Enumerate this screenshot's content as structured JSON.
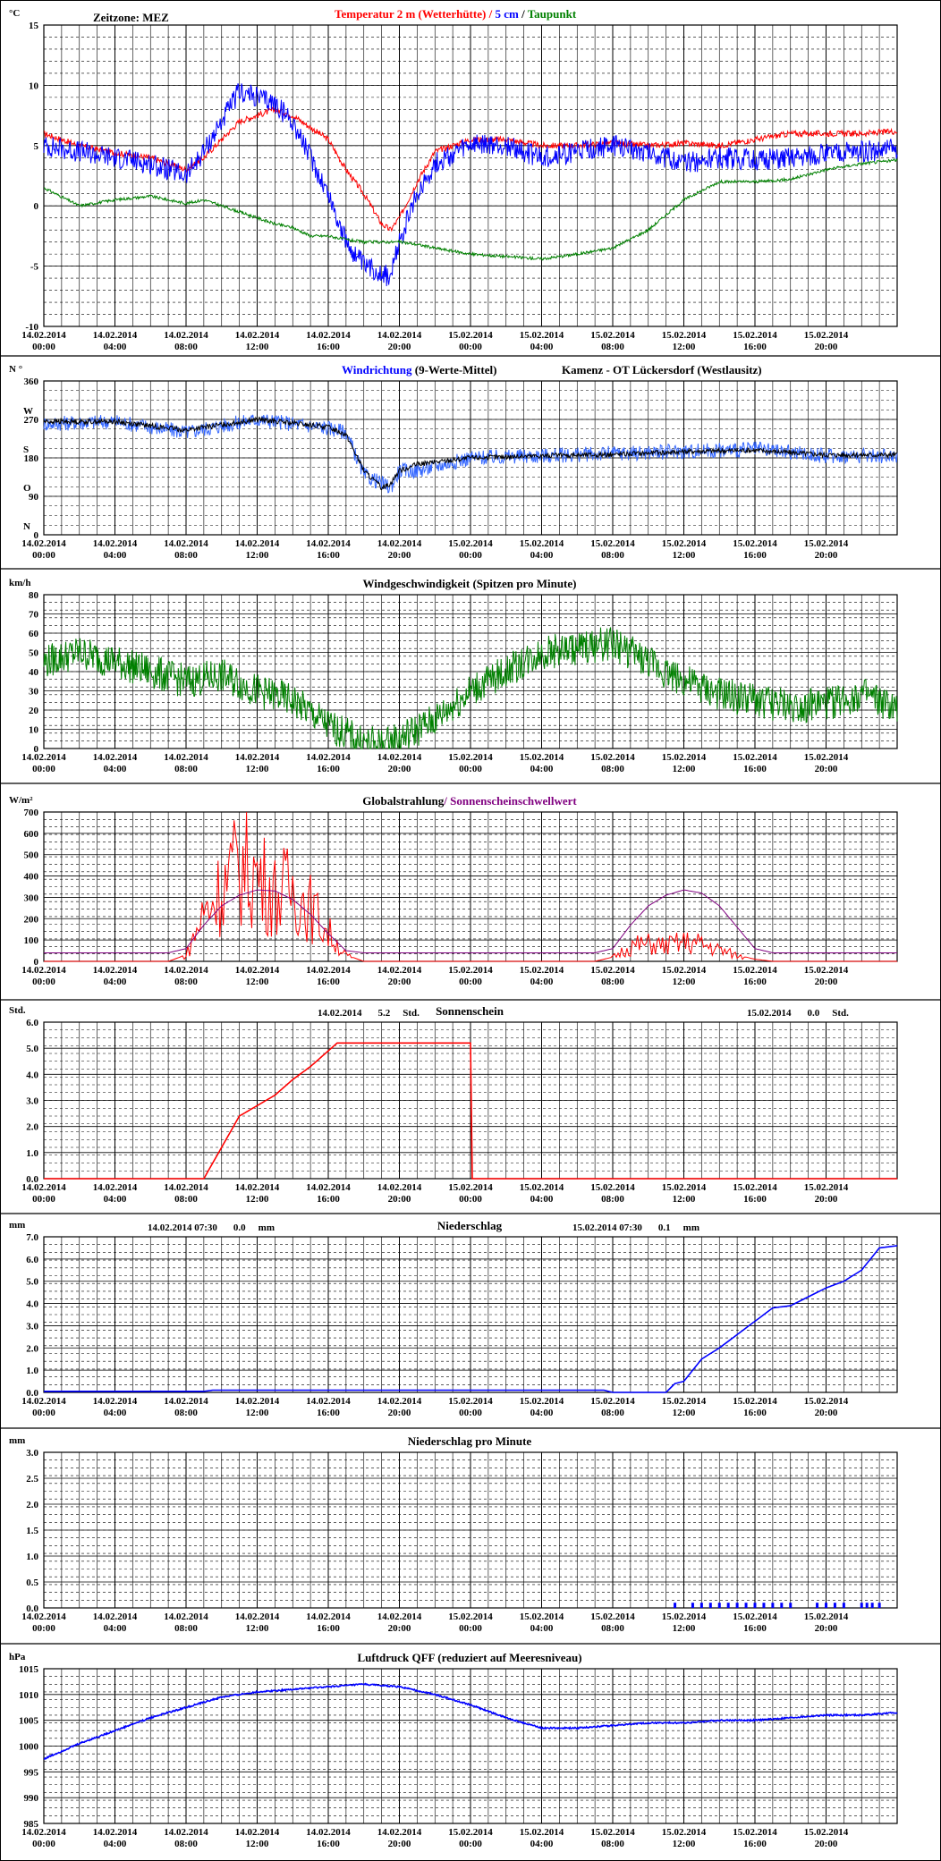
{
  "chart_data": [
    {
      "type": "line",
      "id": "temperature",
      "unit": "°C",
      "title_segments": [
        {
          "text": "Temperatur 2 m (Wetterhütte)",
          "color": "#ff0000"
        },
        {
          "text": "  /  ",
          "color": "#ff0000"
        },
        {
          "text": "5 cm",
          "color": "#0000ff"
        },
        {
          "text": " / ",
          "color": "#000000"
        },
        {
          "text": "Taupunkt",
          "color": "#008000"
        }
      ],
      "header_left": "Zeitzone: MEZ",
      "ylim": [
        -10,
        15
      ],
      "yticks": [
        "15",
        "10",
        "5",
        "0",
        "-5",
        "-10"
      ],
      "yticks_values": [
        15,
        10,
        5,
        0,
        -5,
        -10
      ],
      "x_hours": [
        0,
        2,
        4,
        6,
        8,
        9,
        10,
        11,
        12,
        13,
        14,
        15,
        16,
        17,
        18,
        19,
        19.5,
        20,
        21,
        22,
        24,
        26,
        28,
        30,
        32,
        34,
        36,
        38,
        40,
        42,
        44,
        46,
        48
      ],
      "series": [
        {
          "name": "Temperatur 2 m (Wetterhütte)",
          "color": "#ff0000",
          "values": [
            6.0,
            5.0,
            4.4,
            4.0,
            3.0,
            4.0,
            5.5,
            7.0,
            7.5,
            8.0,
            7.5,
            6.5,
            5.5,
            3.0,
            1.0,
            -1.5,
            -2.0,
            -1.0,
            2.0,
            4.5,
            5.5,
            5.5,
            5.0,
            5.0,
            5.2,
            5.0,
            5.2,
            5.0,
            5.5,
            6.0,
            6.0,
            6.0,
            6.2
          ]
        },
        {
          "name": "5 cm",
          "color": "#0000ff",
          "values": [
            5.0,
            4.5,
            4.0,
            3.5,
            2.5,
            4.5,
            7.0,
            9.5,
            9.0,
            8.5,
            7.0,
            4.0,
            1.0,
            -3.0,
            -5.0,
            -5.5,
            -6.0,
            -3.0,
            1.0,
            3.5,
            5.0,
            5.0,
            4.0,
            4.5,
            5.0,
            4.5,
            3.5,
            4.0,
            3.8,
            4.0,
            4.3,
            4.5,
            4.7
          ]
        },
        {
          "name": "Taupunkt",
          "color": "#008000",
          "values": [
            1.5,
            0.0,
            0.5,
            0.8,
            0.2,
            0.5,
            0.0,
            -0.5,
            -1.0,
            -1.5,
            -1.8,
            -2.5,
            -2.5,
            -2.8,
            -3.0,
            -3.0,
            -3.0,
            -3.0,
            -3.2,
            -3.5,
            -4.0,
            -4.2,
            -4.4,
            -4.0,
            -3.5,
            -2.0,
            0.5,
            2.0,
            2.0,
            2.2,
            3.0,
            3.5,
            3.8
          ]
        }
      ]
    },
    {
      "type": "line",
      "id": "wind_direction",
      "unit": "N °",
      "title_segments": [
        {
          "text": "Windrichtung",
          "color": "#0000ff"
        },
        {
          "text": " (9-Werte-Mittel)",
          "color": "#000000"
        }
      ],
      "header_right": "Kamenz - OT Lückersdorf (Westlausitz)",
      "ylim": [
        0,
        360
      ],
      "yticks": [
        "360",
        "270",
        "180",
        "90",
        "0"
      ],
      "yticks_values": [
        360,
        270,
        180,
        90,
        0
      ],
      "compass_labels": [
        {
          "text": "W",
          "value": 270
        },
        {
          "text": "S",
          "value": 180
        },
        {
          "text": "O",
          "value": 90
        },
        {
          "text": "N",
          "value": 0
        }
      ],
      "x_hours": [
        0,
        4,
        8,
        12,
        16,
        17,
        18,
        19,
        19.5,
        20,
        21,
        24,
        28,
        32,
        36,
        40,
        44,
        48
      ],
      "series": [
        {
          "name": "Windrichtung",
          "color": "#3366ff",
          "values": [
            260,
            265,
            240,
            270,
            250,
            240,
            140,
            120,
            110,
            150,
            150,
            180,
            185,
            190,
            195,
            200,
            185,
            185
          ]
        },
        {
          "name": "9-Werte-Mittel",
          "color": "#000000",
          "values": [
            265,
            265,
            245,
            270,
            252,
            235,
            150,
            110,
            120,
            150,
            165,
            180,
            185,
            188,
            195,
            198,
            187,
            187
          ]
        }
      ]
    },
    {
      "type": "line",
      "id": "wind_speed",
      "unit": "km/h",
      "title_segments": [
        {
          "text": "Windgeschwindigkeit (Spitzen pro Minute)",
          "color": "#000000"
        }
      ],
      "ylim": [
        0,
        80
      ],
      "yticks": [
        "80",
        "70",
        "60",
        "50",
        "40",
        "30",
        "20",
        "10",
        "0"
      ],
      "yticks_values": [
        80,
        70,
        60,
        50,
        40,
        30,
        20,
        10,
        0
      ],
      "x_hours": [
        0,
        2,
        4,
        6,
        8,
        10,
        12,
        14,
        16,
        18,
        19,
        20,
        22,
        24,
        26,
        28,
        30,
        32,
        34,
        36,
        38,
        40,
        42,
        44,
        46,
        48
      ],
      "series": [
        {
          "name": "Windgeschwindigkeit",
          "color": "#008000",
          "values": [
            45,
            50,
            45,
            40,
            35,
            38,
            30,
            25,
            12,
            3,
            2,
            5,
            15,
            30,
            40,
            50,
            52,
            55,
            45,
            35,
            28,
            25,
            22,
            23,
            28,
            20
          ]
        }
      ]
    },
    {
      "type": "line",
      "id": "global_radiation",
      "unit": "W/m²",
      "title_segments": [
        {
          "text": "Globalstrahlung",
          "color": "#000000"
        },
        {
          "text": "/ Sonnenscheinschwellwert",
          "color": "#800080"
        }
      ],
      "ylim": [
        0,
        700
      ],
      "yticks": [
        "700",
        "600",
        "500",
        "400",
        "300",
        "200",
        "100",
        "0"
      ],
      "yticks_values": [
        700,
        600,
        500,
        400,
        300,
        200,
        100,
        0
      ],
      "x_hours": [
        0,
        7,
        8,
        9,
        10,
        11,
        12,
        13,
        14,
        15,
        16,
        17,
        18,
        24,
        31,
        32,
        33,
        34,
        35,
        36,
        37,
        38,
        39,
        40,
        41,
        48
      ],
      "series": [
        {
          "name": "Globalstrahlung",
          "color": "#ff0000",
          "values": [
            0,
            0,
            30,
            250,
            380,
            500,
            450,
            350,
            380,
            280,
            150,
            30,
            0,
            0,
            0,
            20,
            80,
            90,
            80,
            100,
            90,
            60,
            30,
            10,
            0,
            0
          ]
        },
        {
          "name": "Sonnenscheinschwellwert",
          "color": "#800080",
          "values": [
            40,
            40,
            60,
            170,
            260,
            310,
            335,
            330,
            290,
            220,
            130,
            50,
            40,
            40,
            40,
            60,
            170,
            260,
            310,
            335,
            320,
            260,
            160,
            60,
            40,
            40
          ]
        }
      ]
    },
    {
      "type": "line",
      "id": "sunshine",
      "unit": "Std.",
      "title_segments": [
        {
          "text": "Sonnenschein",
          "color": "#000000"
        }
      ],
      "summaries": [
        {
          "date": "14.02.2014",
          "value": "5.2",
          "unit": "Std."
        },
        {
          "date": "15.02.2014",
          "value": "0.0",
          "unit": "Std."
        }
      ],
      "ylim": [
        0,
        6
      ],
      "yticks": [
        "6.0",
        "5.0",
        "4.0",
        "3.0",
        "2.0",
        "1.0",
        "0.0"
      ],
      "yticks_values": [
        6,
        5,
        4,
        3,
        2,
        1,
        0
      ],
      "x_hours": [
        0,
        9,
        11,
        12,
        13,
        14,
        15,
        16,
        16.5,
        24,
        24.01,
        48
      ],
      "series": [
        {
          "name": "Sonnenschein",
          "color": "#ff0000",
          "values": [
            0,
            0,
            2.4,
            2.8,
            3.2,
            3.8,
            4.3,
            4.9,
            5.2,
            5.2,
            0,
            0
          ]
        }
      ]
    },
    {
      "type": "line",
      "id": "precipitation",
      "unit": "mm",
      "title_segments": [
        {
          "text": "Niederschlag",
          "color": "#000000"
        }
      ],
      "summaries": [
        {
          "date": "14.02.2014 07:30",
          "value": "0.0",
          "unit": "mm"
        },
        {
          "date": "15.02.2014 07:30",
          "value": "0.1",
          "unit": "mm"
        }
      ],
      "ylim": [
        0,
        7
      ],
      "yticks": [
        "7.0",
        "6.0",
        "5.0",
        "4.0",
        "3.0",
        "2.0",
        "1.0",
        "0.0"
      ],
      "yticks_values": [
        7,
        6,
        5,
        4,
        3,
        2,
        1,
        0
      ],
      "x_hours": [
        0,
        9,
        9.5,
        31.5,
        32,
        35,
        35.5,
        36,
        37,
        38,
        39,
        40,
        41,
        42,
        43,
        44,
        45,
        46,
        47,
        48
      ],
      "series": [
        {
          "name": "Niederschlag",
          "color": "#0000ff",
          "values": [
            0.05,
            0.05,
            0.1,
            0.1,
            0.0,
            0.0,
            0.4,
            0.5,
            1.5,
            2.0,
            2.6,
            3.2,
            3.8,
            3.9,
            4.3,
            4.7,
            5.0,
            5.5,
            6.5,
            6.6
          ]
        }
      ]
    },
    {
      "type": "bar",
      "id": "precip_per_minute",
      "unit": "mm",
      "title_segments": [
        {
          "text": "Niederschlag pro Minute",
          "color": "#000000"
        }
      ],
      "ylim": [
        0,
        3
      ],
      "yticks": [
        "3.0",
        "2.5",
        "2.0",
        "1.5",
        "1.0",
        "0.5",
        "0.0"
      ],
      "yticks_values": [
        3,
        2.5,
        2,
        1.5,
        1,
        0.5,
        0
      ],
      "x_hours": [
        35.5,
        36.5,
        37.0,
        37.5,
        38.0,
        38.5,
        39.0,
        39.5,
        40.0,
        40.5,
        41.0,
        41.5,
        42.0,
        43.5,
        44.0,
        44.5,
        45.0,
        46.0,
        46.3,
        46.6,
        47.0
      ],
      "series": [
        {
          "name": "Niederschlag pro Minute",
          "color": "#0000ff",
          "values": [
            0.1,
            0.1,
            0.1,
            0.1,
            0.1,
            0.1,
            0.1,
            0.1,
            0.1,
            0.1,
            0.1,
            0.1,
            0.1,
            0.1,
            0.1,
            0.1,
            0.1,
            0.1,
            0.1,
            0.1,
            0.1
          ]
        }
      ]
    },
    {
      "type": "line",
      "id": "pressure",
      "unit": "hPa",
      "title_segments": [
        {
          "text": "Luftdruck QFF (reduziert auf Meeresniveau)",
          "color": "#000000"
        }
      ],
      "ylim": [
        985,
        1015
      ],
      "yticks": [
        "1015",
        "1010",
        "1005",
        "1000",
        "995",
        "990",
        "985"
      ],
      "yticks_values": [
        1015,
        1010,
        1005,
        1000,
        995,
        990,
        985
      ],
      "x_hours": [
        0,
        2,
        4,
        6,
        8,
        10,
        12,
        14,
        16,
        18,
        20,
        22,
        24,
        26,
        28,
        30,
        32,
        34,
        36,
        38,
        40,
        42,
        44,
        46,
        48
      ],
      "series": [
        {
          "name": "Luftdruck QFF",
          "color": "#0000ff",
          "values": [
            997.5,
            1000.5,
            1003.0,
            1005.5,
            1007.5,
            1009.5,
            1010.5,
            1011.0,
            1011.5,
            1012.0,
            1011.5,
            1010.0,
            1008.0,
            1005.5,
            1003.5,
            1003.5,
            1004.0,
            1004.5,
            1004.5,
            1005.0,
            1005.0,
            1005.5,
            1006.0,
            1006.0,
            1006.5
          ]
        }
      ]
    }
  ],
  "x_axis": {
    "labels": [
      {
        "date": "14.02.2014",
        "time": "00:00",
        "hour": 0
      },
      {
        "date": "14.02.2014",
        "time": "04:00",
        "hour": 4
      },
      {
        "date": "14.02.2014",
        "time": "08:00",
        "hour": 8
      },
      {
        "date": "14.02.2014",
        "time": "12:00",
        "hour": 12
      },
      {
        "date": "14.02.2014",
        "time": "16:00",
        "hour": 16
      },
      {
        "date": "14.02.2014",
        "time": "20:00",
        "hour": 20
      },
      {
        "date": "15.02.2014",
        "time": "00:00",
        "hour": 24
      },
      {
        "date": "15.02.2014",
        "time": "04:00",
        "hour": 28
      },
      {
        "date": "15.02.2014",
        "time": "08:00",
        "hour": 32
      },
      {
        "date": "15.02.2014",
        "time": "12:00",
        "hour": 36
      },
      {
        "date": "15.02.2014",
        "time": "16:00",
        "hour": 40
      },
      {
        "date": "15.02.2014",
        "time": "20:00",
        "hour": 44
      }
    ],
    "range_hours": [
      0,
      48
    ]
  }
}
